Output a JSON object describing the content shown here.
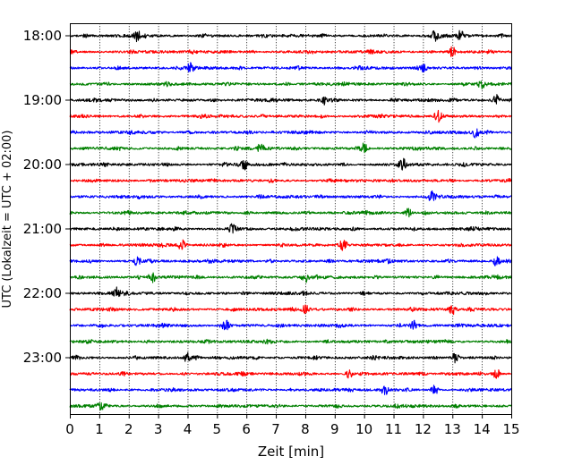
{
  "chart_data": {
    "type": "line",
    "title": "",
    "xlabel": "Zeit  [min]",
    "ylabel": "UTC (Lokalzeit = UTC + 02:00)",
    "xlim": [
      0,
      15
    ],
    "x_ticks": [
      0,
      1,
      2,
      3,
      4,
      5,
      6,
      7,
      8,
      9,
      10,
      11,
      12,
      13,
      14,
      15
    ],
    "x_tick_labels": [
      "0",
      "1",
      "2",
      "3",
      "4",
      "5",
      "6",
      "7",
      "8",
      "9",
      "10",
      "11",
      "12",
      "13",
      "14",
      "15"
    ],
    "y_tick_labels": [
      "18:00",
      "19:00",
      "20:00",
      "21:00",
      "22:00",
      "23:00"
    ],
    "trace_interval_min": 15,
    "grid_x": true,
    "grid_y": false,
    "colors": [
      "#000000",
      "#ff0000",
      "#0000ff",
      "#008000"
    ],
    "traces": [
      {
        "start": "18:00",
        "color": "#000000"
      },
      {
        "start": "18:15",
        "color": "#ff0000"
      },
      {
        "start": "18:30",
        "color": "#0000ff"
      },
      {
        "start": "18:45",
        "color": "#008000"
      },
      {
        "start": "19:00",
        "color": "#000000"
      },
      {
        "start": "19:15",
        "color": "#ff0000"
      },
      {
        "start": "19:30",
        "color": "#0000ff"
      },
      {
        "start": "19:45",
        "color": "#008000"
      },
      {
        "start": "20:00",
        "color": "#000000"
      },
      {
        "start": "20:15",
        "color": "#ff0000"
      },
      {
        "start": "20:30",
        "color": "#0000ff"
      },
      {
        "start": "20:45",
        "color": "#008000"
      },
      {
        "start": "21:00",
        "color": "#000000"
      },
      {
        "start": "21:15",
        "color": "#ff0000"
      },
      {
        "start": "21:30",
        "color": "#0000ff"
      },
      {
        "start": "21:45",
        "color": "#008000"
      },
      {
        "start": "22:00",
        "color": "#000000"
      },
      {
        "start": "22:15",
        "color": "#ff0000"
      },
      {
        "start": "22:30",
        "color": "#0000ff"
      },
      {
        "start": "22:45",
        "color": "#008000"
      },
      {
        "start": "23:00",
        "color": "#000000"
      },
      {
        "start": "23:15",
        "color": "#ff0000"
      },
      {
        "start": "23:30",
        "color": "#0000ff"
      },
      {
        "start": "23:45",
        "color": "#008000"
      }
    ],
    "events": [
      {
        "trace": 0,
        "x": 2.3
      },
      {
        "trace": 0,
        "x": 12.4
      },
      {
        "trace": 0,
        "x": 13.3
      },
      {
        "trace": 1,
        "x": 13.0
      },
      {
        "trace": 2,
        "x": 4.1
      },
      {
        "trace": 2,
        "x": 12.0
      },
      {
        "trace": 3,
        "x": 14.0
      },
      {
        "trace": 4,
        "x": 8.6
      },
      {
        "trace": 4,
        "x": 14.5
      },
      {
        "trace": 5,
        "x": 12.5
      },
      {
        "trace": 6,
        "x": 13.8
      },
      {
        "trace": 7,
        "x": 6.5
      },
      {
        "trace": 7,
        "x": 10.0
      },
      {
        "trace": 8,
        "x": 5.9
      },
      {
        "trace": 8,
        "x": 11.3
      },
      {
        "trace": 10,
        "x": 12.3
      },
      {
        "trace": 11,
        "x": 11.5
      },
      {
        "trace": 12,
        "x": 5.5
      },
      {
        "trace": 13,
        "x": 3.8
      },
      {
        "trace": 13,
        "x": 9.3
      },
      {
        "trace": 14,
        "x": 2.3
      },
      {
        "trace": 14,
        "x": 14.5
      },
      {
        "trace": 15,
        "x": 2.8
      },
      {
        "trace": 15,
        "x": 8.0
      },
      {
        "trace": 16,
        "x": 1.6
      },
      {
        "trace": 17,
        "x": 8.0
      },
      {
        "trace": 17,
        "x": 13.0
      },
      {
        "trace": 18,
        "x": 5.3
      },
      {
        "trace": 18,
        "x": 11.7
      },
      {
        "trace": 20,
        "x": 4.0
      },
      {
        "trace": 20,
        "x": 13.1
      },
      {
        "trace": 21,
        "x": 9.5
      },
      {
        "trace": 21,
        "x": 14.5
      },
      {
        "trace": 22,
        "x": 12.4
      },
      {
        "trace": 22,
        "x": 10.7
      },
      {
        "trace": 23,
        "x": 1.1
      }
    ]
  }
}
